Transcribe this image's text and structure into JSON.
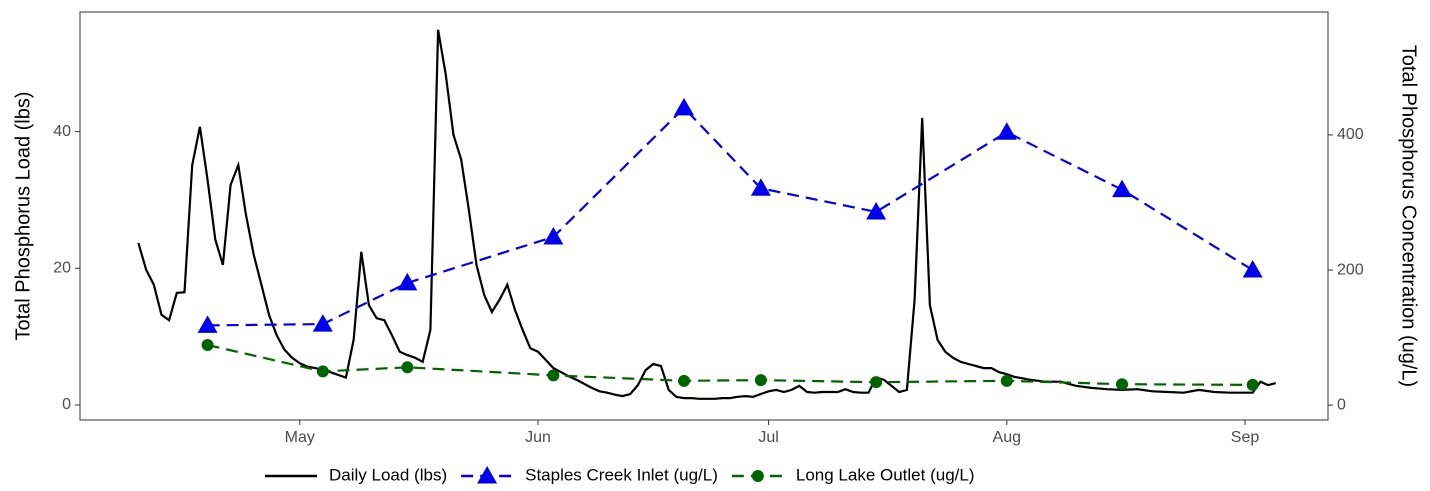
{
  "chart_data": {
    "type": "line",
    "y_label": "Total Phosphorus Load (lbs)",
    "y2_label": "Total Phosphorus Concentration (ug/L)",
    "xlim": [
      92.4,
      254.8
    ],
    "xticks": [
      {
        "value": 121,
        "label": "May"
      },
      {
        "value": 152,
        "label": "Jun"
      },
      {
        "value": 182,
        "label": "Jul"
      },
      {
        "value": 213,
        "label": "Aug"
      },
      {
        "value": 244,
        "label": "Sep"
      }
    ],
    "ylim": [
      -2.2,
      57.5
    ],
    "yticks": [
      0,
      20,
      40
    ],
    "y2lim": [
      -22,
      582
    ],
    "y2ticks": [
      0,
      200,
      400
    ],
    "grid": false,
    "legend": "bottom",
    "series": [
      {
        "name": "Daily Load (lbs)",
        "color": "#000000",
        "axis": "y",
        "dashed": false,
        "marker": "none",
        "x": [
          100,
          101,
          102,
          103,
          104,
          105,
          106,
          107,
          108,
          109,
          110,
          111,
          112,
          113,
          114,
          115,
          116,
          117,
          118,
          119,
          120,
          121,
          122,
          123,
          124,
          125,
          126,
          127,
          128,
          129,
          130,
          131,
          132,
          133,
          134,
          135,
          136,
          137,
          138,
          139,
          140,
          141,
          142,
          143,
          144,
          145,
          146,
          147,
          148,
          149,
          150,
          151,
          152,
          153,
          154,
          155,
          156,
          157,
          158,
          159,
          160,
          161,
          162,
          163,
          164,
          165,
          166,
          167,
          168,
          169,
          170,
          171,
          172,
          173,
          174,
          175,
          176,
          177,
          178,
          179,
          180,
          181,
          182,
          183,
          184,
          185,
          186,
          187,
          188,
          189,
          190,
          191,
          192,
          193,
          194,
          195,
          196,
          197,
          198,
          199,
          200,
          201,
          202,
          203,
          204,
          205,
          206,
          207,
          208,
          209,
          210,
          211,
          212,
          213,
          214,
          216,
          218,
          220,
          222,
          224,
          226,
          228,
          230,
          232,
          234,
          236,
          238,
          240,
          242,
          244,
          245,
          246,
          247,
          248
        ],
        "values": [
          23.7,
          19.8,
          17.6,
          13.2,
          12.4,
          16.4,
          16.5,
          35.1,
          40.7,
          32.9,
          24.2,
          20.5,
          32.2,
          35.1,
          27.8,
          22.0,
          17.6,
          13.2,
          10.2,
          8.1,
          6.9,
          6.1,
          5.6,
          5.4,
          5.1,
          4.8,
          4.4,
          4.0,
          9.5,
          22.4,
          14.6,
          12.7,
          12.4,
          10.2,
          7.8,
          7.3,
          6.9,
          6.3,
          11.0,
          54.9,
          48.3,
          39.5,
          35.9,
          28.6,
          20.5,
          16.1,
          13.6,
          15.4,
          17.6,
          13.9,
          11.0,
          8.3,
          7.8,
          6.6,
          5.4,
          4.8,
          4.2,
          3.7,
          3.1,
          2.5,
          2.0,
          1.8,
          1.5,
          1.3,
          1.6,
          2.9,
          5.1,
          6.0,
          5.7,
          2.2,
          1.2,
          1.0,
          1.0,
          0.9,
          0.9,
          0.9,
          1.0,
          1.0,
          1.2,
          1.3,
          1.2,
          1.6,
          2.0,
          2.2,
          1.9,
          2.2,
          2.8,
          1.9,
          1.8,
          1.9,
          1.9,
          1.9,
          2.3,
          1.9,
          1.8,
          1.8,
          4.0,
          3.7,
          2.8,
          1.9,
          2.2,
          15.4,
          42.0,
          14.6,
          9.5,
          7.8,
          6.9,
          6.3,
          6.0,
          5.7,
          5.4,
          5.4,
          4.8,
          4.5,
          4.1,
          3.7,
          3.4,
          3.4,
          2.8,
          2.5,
          2.3,
          2.2,
          2.3,
          2.0,
          1.9,
          1.8,
          2.2,
          1.9,
          1.8,
          1.8,
          1.8,
          3.4,
          2.9,
          3.2
        ]
      },
      {
        "name": "Staples Creek Inlet (ug/L)",
        "color": "#0000ee",
        "axis": "y2",
        "dashed": true,
        "marker": "triangle",
        "x": [
          109,
          124,
          135,
          154,
          171,
          181,
          196,
          213,
          228,
          245
        ],
        "values": [
          118,
          120,
          181,
          249,
          440,
          321,
          286,
          404,
          319,
          200
        ]
      },
      {
        "name": "Long Lake Outlet (ug/L)",
        "color": "#006400",
        "axis": "y2",
        "dashed": true,
        "marker": "circle",
        "x": [
          109,
          124,
          135,
          154,
          171,
          181,
          196,
          213,
          228,
          245
        ],
        "values": [
          89,
          50,
          56,
          44,
          36,
          37,
          34,
          36,
          31,
          30
        ]
      }
    ]
  }
}
